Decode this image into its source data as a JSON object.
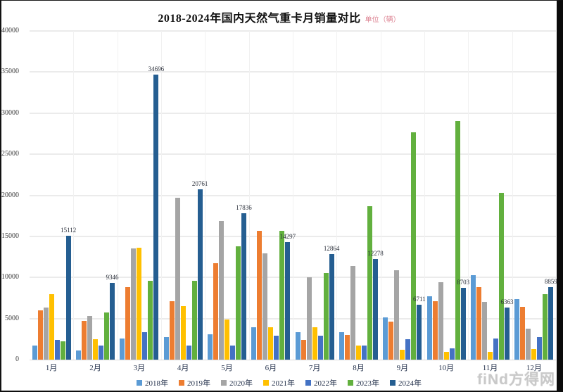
{
  "title": "2018-2024年国内天然气重卡月销量对比",
  "unit_label": "单位（辆）",
  "watermark": "fiNd方得网",
  "chart_data": {
    "type": "bar",
    "title": "2018-2024年国内天然气重卡月销量对比",
    "unit": "辆",
    "categories": [
      "1月",
      "2月",
      "3月",
      "4月",
      "5月",
      "6月",
      "7月",
      "8月",
      "9月",
      "10月",
      "11月",
      "12月"
    ],
    "series": [
      {
        "name": "2018年",
        "color": "#5B9BD5",
        "values": [
          1700,
          1100,
          2600,
          2700,
          3100,
          3900,
          3300,
          3300,
          5100,
          7700,
          10300,
          7400
        ]
      },
      {
        "name": "2019年",
        "color": "#ED7D31",
        "values": [
          6000,
          4700,
          8800,
          7100,
          11700,
          15700,
          2400,
          3000,
          4600,
          7100,
          8800,
          6400
        ]
      },
      {
        "name": "2020年",
        "color": "#A5A5A5",
        "values": [
          6300,
          5300,
          13500,
          19700,
          16900,
          12900,
          10000,
          11400,
          10900,
          9400,
          7000,
          3800
        ]
      },
      {
        "name": "2021年",
        "color": "#FFC000",
        "values": [
          8000,
          2500,
          13600,
          6500,
          4900,
          3900,
          3900,
          1700,
          1200,
          900,
          900,
          1300
        ]
      },
      {
        "name": "2022年",
        "color": "#4472C4",
        "values": [
          2400,
          1700,
          3300,
          1700,
          1700,
          2900,
          2900,
          1700,
          2500,
          1400,
          2600,
          2700
        ]
      },
      {
        "name": "2023年",
        "color": "#62B03E",
        "values": [
          2200,
          5700,
          9600,
          9600,
          13800,
          15700,
          10500,
          18700,
          27700,
          29000,
          20300,
          8000
        ]
      },
      {
        "name": "2024年",
        "color": "#255E91",
        "values": [
          15112,
          9346,
          34696,
          20761,
          17836,
          14297,
          12864,
          12278,
          6711,
          8703,
          6363,
          8859
        ],
        "data_labels": true
      }
    ],
    "ylim": [
      0,
      40000
    ],
    "ytick_step": 5000,
    "grid": true,
    "legend_position": "bottom"
  }
}
